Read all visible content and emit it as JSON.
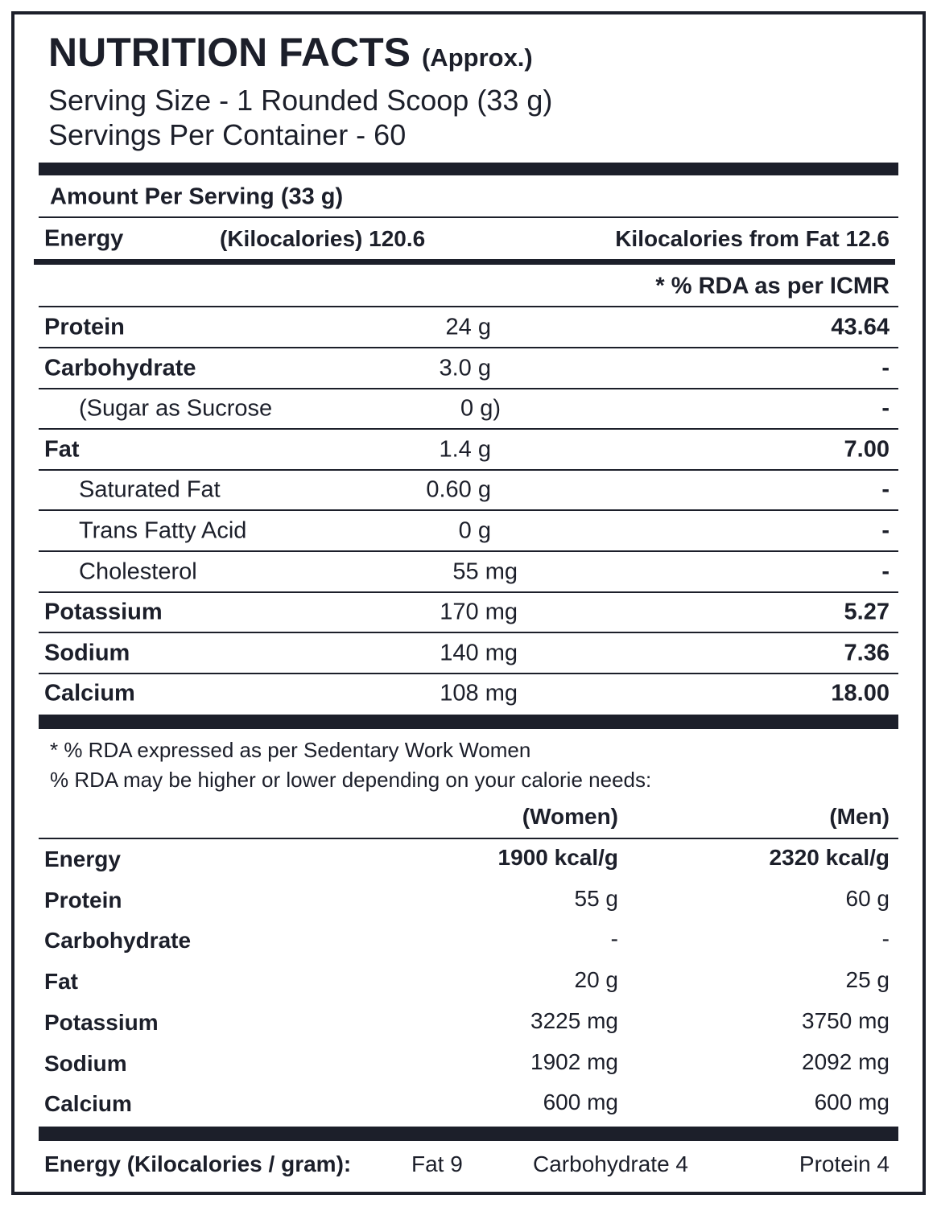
{
  "header": {
    "title": "NUTRITION FACTS",
    "title_note": "(Approx.)",
    "serving_size": "Serving Size - 1 Rounded Scoop (33 g)",
    "servings_per_container": "Servings Per Container - 60"
  },
  "amount_per_serving": "Amount Per Serving (33 g)",
  "energy": {
    "label": "Energy",
    "kcal_label": "(Kilocalories) 120.6",
    "from_fat": "Kilocalories from Fat 12.6"
  },
  "rda_header": "* % RDA as per ICMR",
  "nutrients": [
    {
      "name": "Protein",
      "amount": "24 g",
      "rda": "43.64",
      "bold": true,
      "indent": false
    },
    {
      "name": "Carbohydrate",
      "amount": "3.0 g",
      "rda": "-",
      "bold": true,
      "indent": false
    },
    {
      "name": "(Sugar as Sucrose",
      "amount": "0 g)",
      "rda": "-",
      "bold": false,
      "indent": true
    },
    {
      "name": "Fat",
      "amount": "1.4 g",
      "rda": "7.00",
      "bold": true,
      "indent": false
    },
    {
      "name": "Saturated Fat",
      "amount": "0.60 g",
      "rda": "-",
      "bold": false,
      "indent": true
    },
    {
      "name": "Trans Fatty Acid",
      "amount": "0 g",
      "rda": "-",
      "bold": false,
      "indent": true
    },
    {
      "name": "Cholesterol",
      "amount": "55 mg",
      "rda": "-",
      "bold": false,
      "indent": true
    },
    {
      "name": "Potassium",
      "amount": "170 mg",
      "rda": "5.27",
      "bold": true,
      "indent": false
    },
    {
      "name": "Sodium",
      "amount": "140 mg",
      "rda": "7.36",
      "bold": true,
      "indent": false
    },
    {
      "name": "Calcium",
      "amount": "108 mg",
      "rda": "18.00",
      "bold": true,
      "indent": false
    }
  ],
  "footnotes": [
    "* % RDA expressed as per Sedentary Work Women",
    "% RDA may be higher or lower depending on your calorie needs:"
  ],
  "reference": {
    "col_women": "(Women)",
    "col_men": "(Men)",
    "rows": [
      {
        "name": "Energy",
        "women": "1900 kcal/g",
        "men": "2320 kcal/g"
      },
      {
        "name": "Protein",
        "women": "55 g",
        "men": "60 g"
      },
      {
        "name": "Carbohydrate",
        "women": "-",
        "men": "-"
      },
      {
        "name": "Fat",
        "women": "20 g",
        "men": "25 g"
      },
      {
        "name": "Potassium",
        "women": "3225 mg",
        "men": "3750 mg"
      },
      {
        "name": "Sodium",
        "women": "1902 mg",
        "men": "2092 mg"
      },
      {
        "name": "Calcium",
        "women": "600 mg",
        "men": "600 mg"
      }
    ]
  },
  "energy_per_gram": {
    "label": "Energy (Kilocalories / gram):",
    "fat": "Fat 9",
    "carbohydrate": "Carbohydrate 4",
    "protein": "Protein 4"
  },
  "colors": {
    "ink": "#1c1f2a",
    "background": "#ffffff"
  }
}
